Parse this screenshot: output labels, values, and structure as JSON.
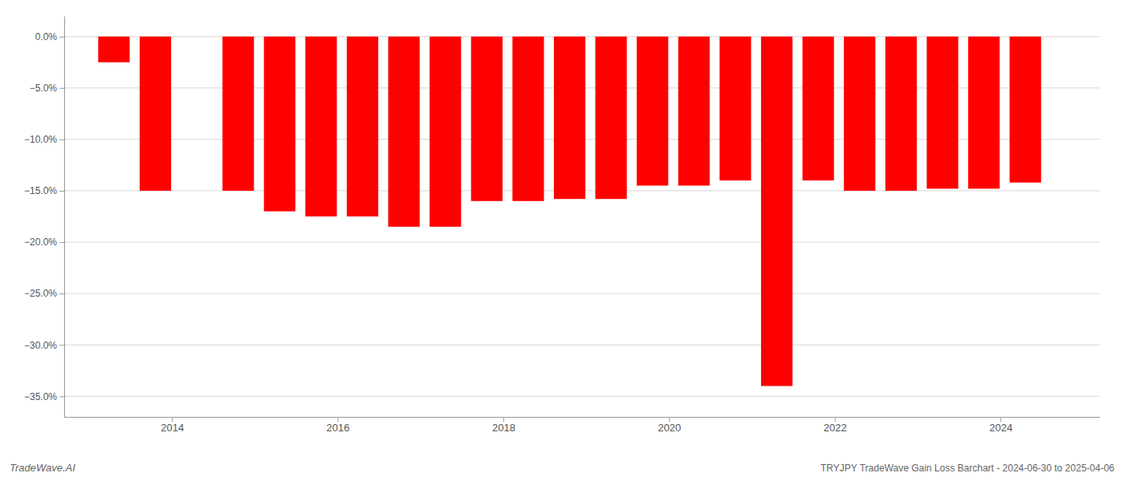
{
  "chart_data": {
    "type": "bar",
    "x": [
      2013.3,
      2013.8,
      2014.8,
      2015.3,
      2015.8,
      2016.3,
      2016.8,
      2017.3,
      2017.8,
      2018.3,
      2018.8,
      2019.3,
      2019.8,
      2020.3,
      2020.8,
      2021.3,
      2021.8,
      2022.3,
      2022.8,
      2023.3,
      2023.8,
      2024.3
    ],
    "values": [
      -2.5,
      -15.0,
      -15.0,
      -17.0,
      -17.5,
      -17.5,
      -18.5,
      -18.5,
      -16.0,
      -16.0,
      -15.8,
      -15.8,
      -14.5,
      -14.5,
      -14.0,
      -34.0,
      -14.0,
      -15.0,
      -15.0,
      -14.8,
      -14.8,
      -14.2
    ],
    "color": "#ff0000",
    "xlim": [
      2012.7,
      2025.2
    ],
    "xticks": [
      2014,
      2016,
      2018,
      2020,
      2022,
      2024
    ],
    "ylim": [
      -37,
      2.0
    ],
    "yticks": [
      {
        "value": 0,
        "label": "0.0%"
      },
      {
        "value": -5,
        "label": "−5.0%"
      },
      {
        "value": -10,
        "label": "−10.0%"
      },
      {
        "value": -15,
        "label": "−15.0%"
      },
      {
        "value": -20,
        "label": "−20.0%"
      },
      {
        "value": -25,
        "label": "−25.0%"
      },
      {
        "value": -30,
        "label": "−30.0%"
      },
      {
        "value": -35,
        "label": "−35.0%"
      }
    ],
    "grid": true,
    "annotations": [
      "TradeWave.AI",
      "TRYJPY TradeWave Gain Loss Barchart - 2024-06-30 to 2025-04-06"
    ]
  }
}
